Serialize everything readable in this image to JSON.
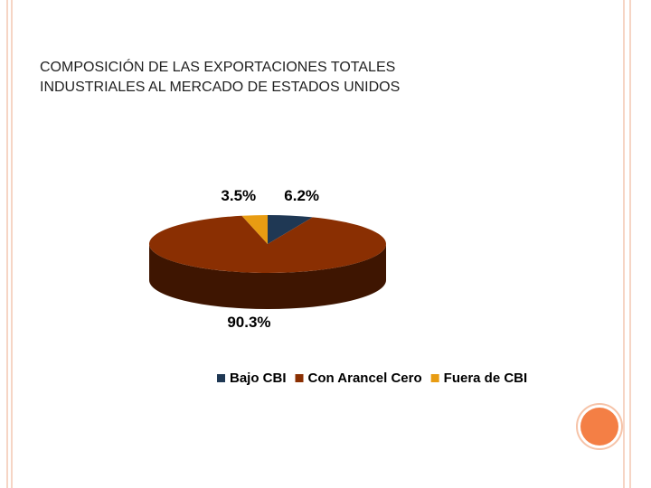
{
  "chart_data": {
    "type": "pie",
    "pie_style": "3d",
    "title": "COMPOSICIÓN DE LAS EXPORTACIONES TOTALES INDUSTRIALES AL MERCADO DE ESTADOS UNIDOS",
    "categories": [
      "Bajo CBI",
      "Con Arancel Cero",
      "Fuera de CBI"
    ],
    "values": [
      6.2,
      90.3,
      3.5
    ],
    "value_labels": [
      "6.2%",
      "90.3%",
      "3.5%"
    ],
    "colors": [
      "#1f3854",
      "#8a2f02",
      "#e89c12"
    ],
    "legend": "bottom"
  }
}
